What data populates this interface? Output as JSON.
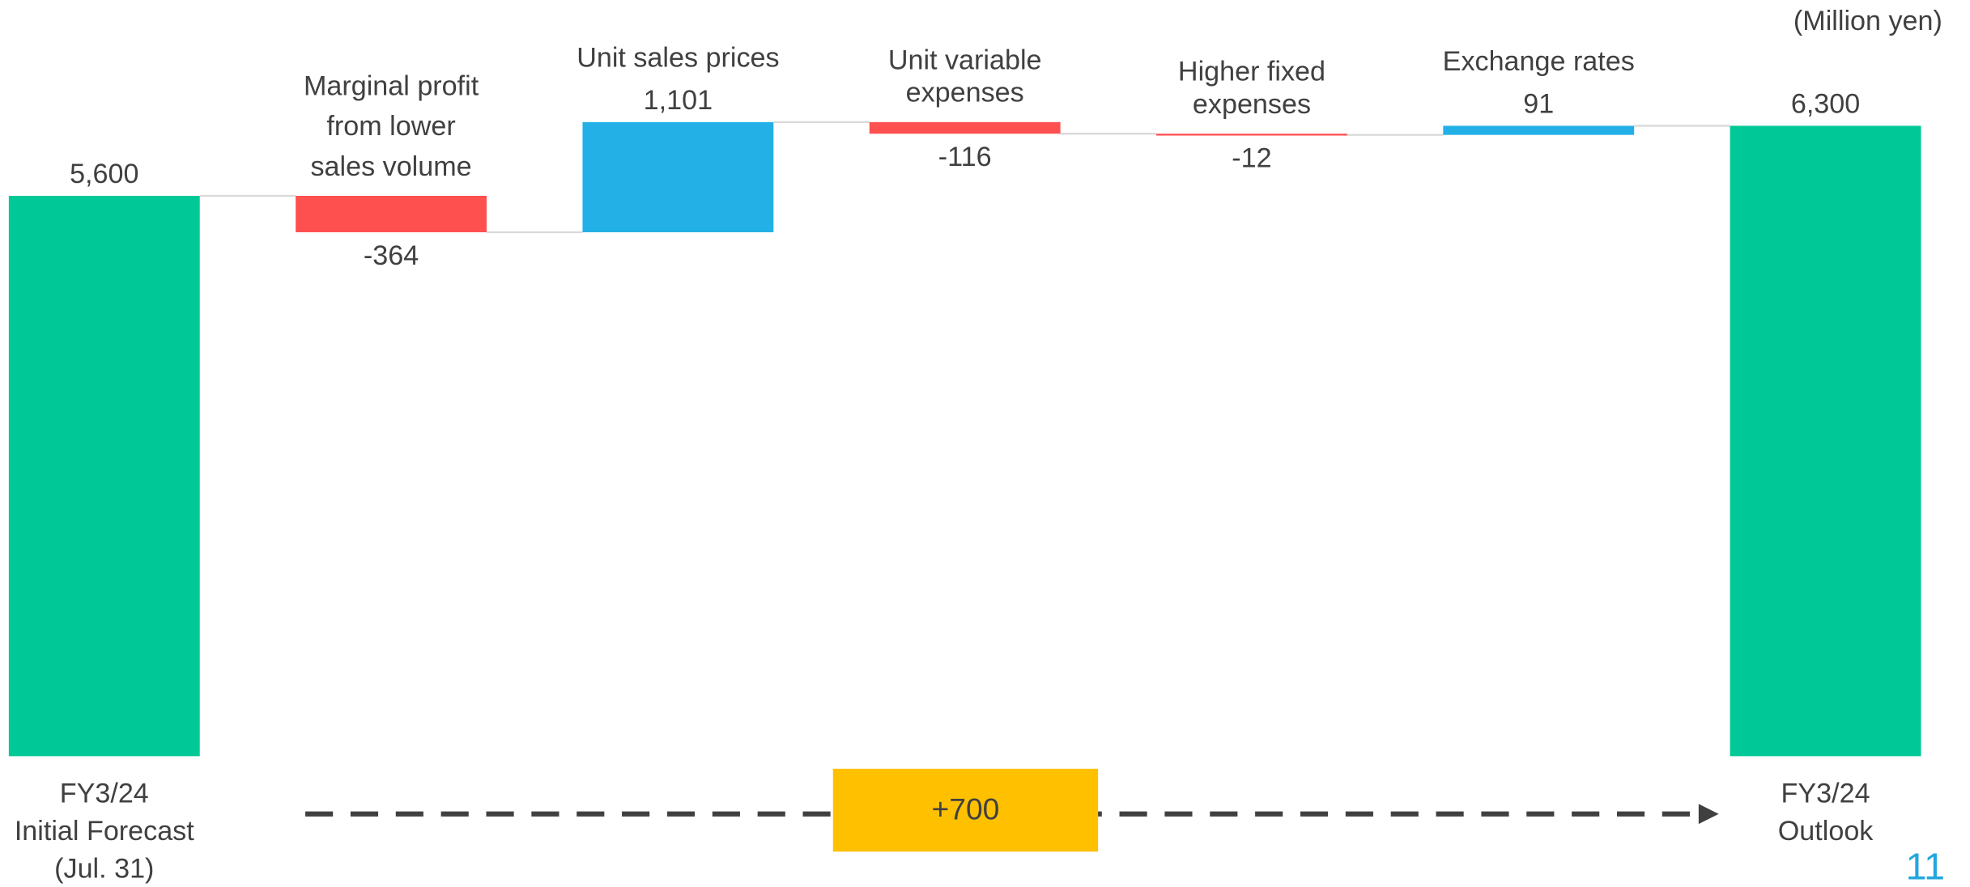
{
  "chart_data": {
    "type": "waterfall",
    "unit_label": "(Million yen)",
    "categories": [
      "FY3/24\nInitial Forecast\n(Jul. 31)",
      "Marginal profit\nfrom lower\nsales volume",
      "Unit sales prices",
      "Unit variable\nexpenses",
      "Higher fixed\nexpenses",
      "Exchange rates",
      "FY3/24\nOutlook"
    ],
    "values": [
      5600,
      -364,
      1101,
      -116,
      -12,
      91,
      6300
    ],
    "value_labels": [
      "5,600",
      "-364",
      "1,101",
      "-116",
      "-12",
      "91",
      "6,300"
    ],
    "colors": [
      "#00c896",
      "#ff5050",
      "#23b0e6",
      "#ff5050",
      "#ff5050",
      "#23b0e6",
      "#00c896"
    ],
    "annotation": "+700",
    "annotation_color": "#ffc000",
    "page_number": "11"
  }
}
